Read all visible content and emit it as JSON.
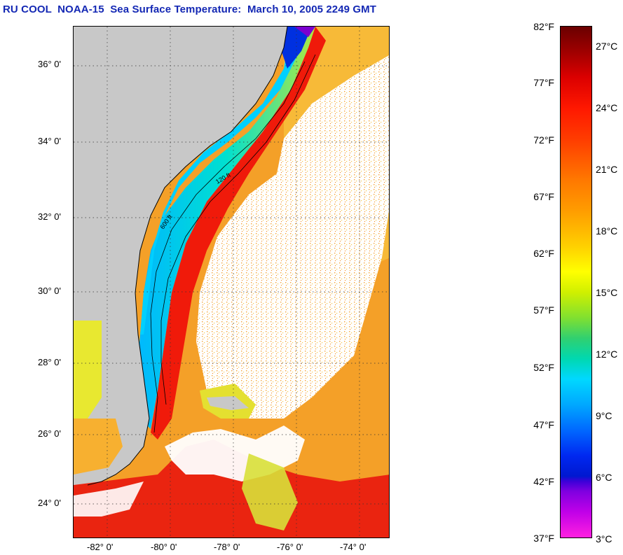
{
  "title": "RU COOL  NOAA-15  Sea Surface Temperature:  March 10, 2005 2249 GMT",
  "map": {
    "lat_labels": [
      "36° 0'",
      "34° 0'",
      "32° 0'",
      "30° 0'",
      "28° 0'",
      "26° 0'",
      "24° 0'"
    ],
    "lon_labels": [
      "-82° 0'",
      "-80° 0'",
      "-78° 0'",
      "-76° 0'",
      "-74° 0'"
    ],
    "lat_range": [
      23.0,
      37.0
    ],
    "lon_range": [
      -83.0,
      -73.0
    ],
    "isobath_labels": [
      "120 ft",
      "600 ft"
    ],
    "colors": {
      "land": "#c8c8c8",
      "cloud": "#ffffff",
      "gulf_stream": "#f01a0a",
      "offshore": "#f5a020",
      "shelf_cold": "#00c8f0",
      "shelf_cool": "#80e050"
    }
  },
  "colorbar": {
    "fahrenheit_labels": [
      "82°F",
      "77°F",
      "72°F",
      "67°F",
      "62°F",
      "57°F",
      "52°F",
      "47°F",
      "42°F",
      "37°F"
    ],
    "celsius_labels": [
      "27°C",
      "24°C",
      "21°C",
      "18°C",
      "15°C",
      "12°C",
      "9°C",
      "6°C",
      "3°C"
    ],
    "range_f": [
      37,
      82
    ]
  }
}
